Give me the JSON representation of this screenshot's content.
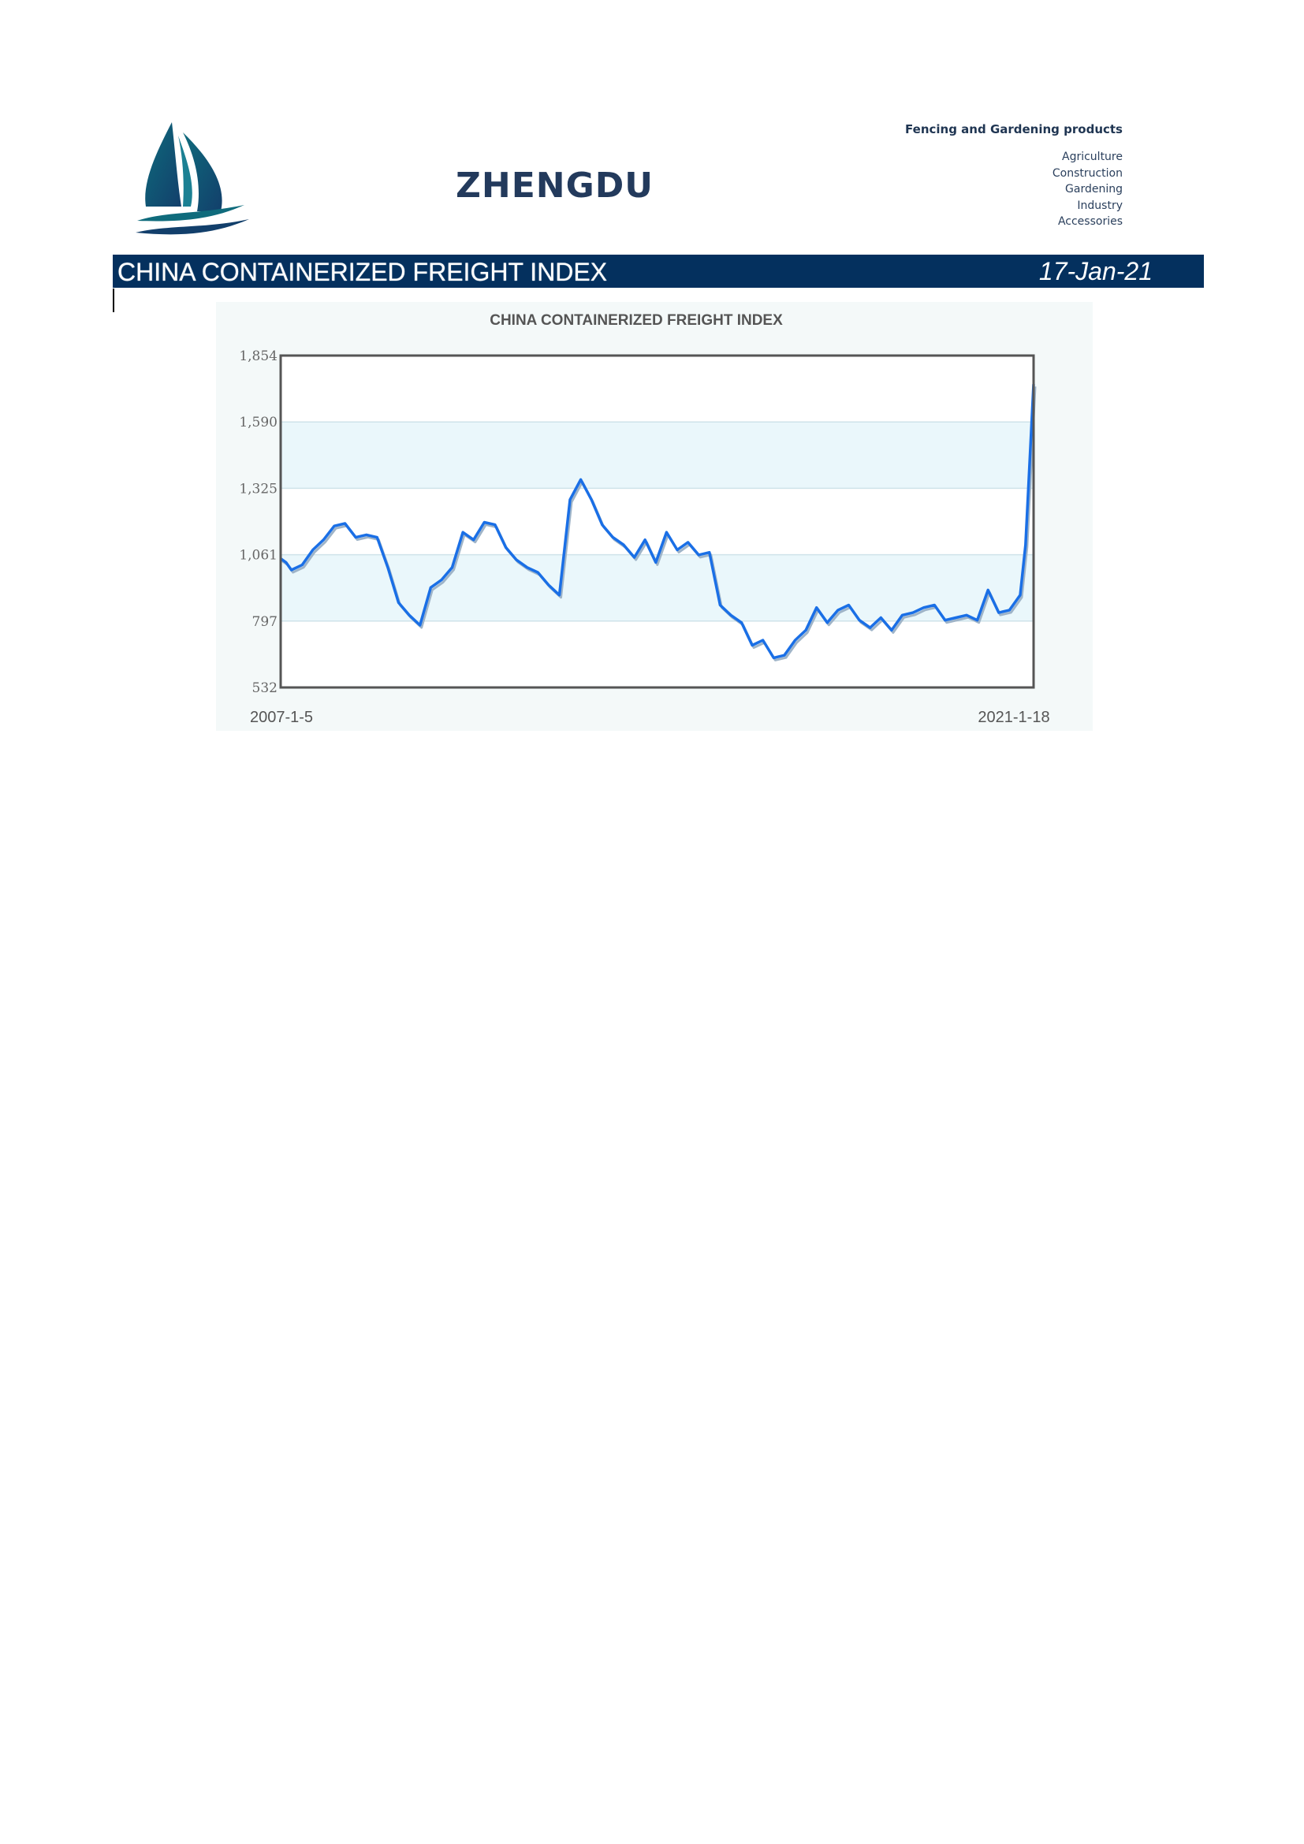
{
  "header": {
    "brand": "ZHENGDU",
    "products_heading": "Fencing and Gardening products",
    "products": [
      "Agriculture",
      "Construction",
      "Gardening",
      "Industry",
      "Accessories"
    ]
  },
  "banner": {
    "title": "CHINA CONTAINERIZED FREIGHT INDEX",
    "date": "17-Jan-21"
  },
  "colors": {
    "banner_bg": "#04305e",
    "brand_text": "#233a5c",
    "line": "#1a6fe6",
    "band": "#eaf7fb"
  },
  "chart_data": {
    "type": "line",
    "title": "CHINA CONTAINERIZED FREIGHT INDEX",
    "xlabel": "",
    "ylabel": "",
    "x_start_label": "2007-1-5",
    "x_end_label": "2021-1-18",
    "ylim": [
      532,
      1854
    ],
    "yticks": [
      "1,854",
      "1,590",
      "1,325",
      "1,061",
      "797",
      "532"
    ],
    "grid": true,
    "legend": "none",
    "series": [
      {
        "name": "",
        "x": [
          2007.0,
          2007.1,
          2007.2,
          2007.4,
          2007.6,
          2007.8,
          2008.0,
          2008.2,
          2008.4,
          2008.6,
          2008.8,
          2009.0,
          2009.2,
          2009.4,
          2009.6,
          2009.8,
          2010.0,
          2010.2,
          2010.4,
          2010.6,
          2010.8,
          2011.0,
          2011.2,
          2011.4,
          2011.6,
          2011.8,
          2012.0,
          2012.2,
          2012.4,
          2012.6,
          2012.8,
          2013.0,
          2013.2,
          2013.4,
          2013.6,
          2013.8,
          2014.0,
          2014.2,
          2014.4,
          2014.6,
          2014.8,
          2015.0,
          2015.2,
          2015.4,
          2015.6,
          2015.8,
          2016.0,
          2016.2,
          2016.4,
          2016.6,
          2016.8,
          2017.0,
          2017.2,
          2017.4,
          2017.6,
          2017.8,
          2018.0,
          2018.2,
          2018.4,
          2018.6,
          2018.8,
          2019.0,
          2019.2,
          2019.4,
          2019.6,
          2019.8,
          2020.0,
          2020.2,
          2020.4,
          2020.6,
          2020.8,
          2020.9,
          2021.05
        ],
        "values": [
          1045,
          1030,
          1000,
          1020,
          1080,
          1120,
          1175,
          1185,
          1130,
          1140,
          1130,
          1010,
          870,
          820,
          780,
          930,
          960,
          1010,
          1150,
          1120,
          1190,
          1180,
          1090,
          1040,
          1010,
          990,
          940,
          900,
          1280,
          1360,
          1280,
          1180,
          1130,
          1100,
          1050,
          1120,
          1030,
          1150,
          1080,
          1110,
          1060,
          1070,
          860,
          820,
          790,
          700,
          720,
          650,
          660,
          720,
          760,
          850,
          790,
          840,
          860,
          800,
          770,
          810,
          760,
          820,
          830,
          850,
          860,
          800,
          810,
          820,
          800,
          920,
          830,
          840,
          900,
          1100,
          1740
        ]
      }
    ]
  }
}
